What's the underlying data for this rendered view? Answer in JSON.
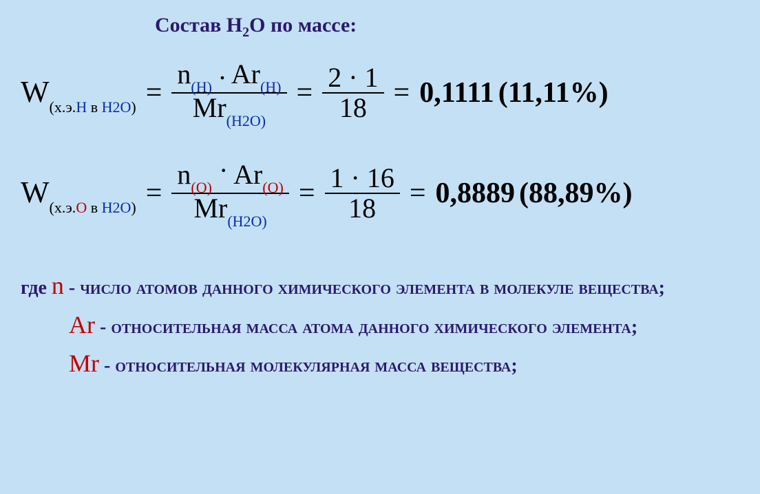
{
  "title": {
    "prefix": "Состав Н",
    "sub": "2",
    "suffix": "О по массе:",
    "color": "#2a1a6e"
  },
  "equations": [
    {
      "lhs": {
        "symbol": "W",
        "sub_prefix": "(х.э.",
        "sub_element": "Н",
        "sub_element_color": "#0a2db0",
        "sub_mid": " в ",
        "sub_compound": "Н2О",
        "sub_suffix": ")"
      },
      "frac1": {
        "num_n": "n",
        "num_n_sub": "(Н)",
        "num_n_sub_color": "#0a2db0",
        "num_dot": " . ",
        "num_ar": "Ar",
        "num_ar_sub": "(Н)",
        "num_ar_sub_color": "#0a2db0",
        "den_mr": "Mr",
        "den_mr_sub": "(Н2О)",
        "den_mr_sub_color": "#0a2db0"
      },
      "frac2": {
        "num": "2 · 1",
        "den": "18"
      },
      "result": "0,1111",
      "percent": "(11,11%)"
    },
    {
      "lhs": {
        "symbol": "W",
        "sub_prefix": "(х.э.",
        "sub_element": "О",
        "sub_element_color": "#c00000",
        "sub_mid": " в ",
        "sub_compound": "Н2О",
        "sub_suffix": ")"
      },
      "frac1": {
        "num_n": "n",
        "num_n_sub": "(О)",
        "num_n_sub_color": "#c00000",
        "num_dot": " · ",
        "num_ar": "Ar",
        "num_ar_sub": "(О)",
        "num_ar_sub_color": "#c00000",
        "den_mr": "Mr",
        "den_mr_sub": "(Н2О)",
        "den_mr_sub_color": "#0a2db0"
      },
      "frac2": {
        "num": "1 · 16",
        "den": "18"
      },
      "result": "0,8889",
      "percent": "(88,89%)"
    }
  ],
  "equals": "=",
  "definitions": {
    "line1_pre": "где ",
    "line1_sym": "n",
    "line1_post": " - число атомов данного химического элемента в молекуле вещества;",
    "line2_sym": "Ar",
    "line2_post": " - относительная масса атома данного химического элемента;",
    "line3_sym": "Mr",
    "line3_post": " - относительная молекулярная масса вещества;",
    "text_color": "#2a1a6e",
    "sym_color": "#c00000"
  },
  "colors": {
    "background": "#c4e0f4",
    "text_black": "#000000"
  }
}
